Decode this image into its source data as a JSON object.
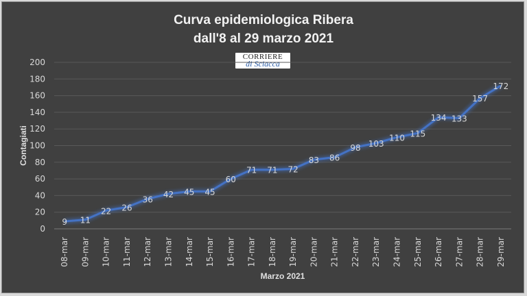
{
  "chart_data": {
    "type": "line",
    "title_line1": "Curva epidemiologica Ribera",
    "title_line2": "dall'8 al 29 marzo 2021",
    "xlabel": "Marzo 2021",
    "ylabel": "Contagiati",
    "ylim": [
      0,
      200
    ],
    "yticks": [
      0,
      20,
      40,
      60,
      80,
      100,
      120,
      140,
      160,
      180,
      200
    ],
    "grid": true,
    "legend": "none",
    "categories": [
      "08-mar",
      "09-mar",
      "10-mar",
      "11-mar",
      "12-mar",
      "13-mar",
      "14-mar",
      "15-mar",
      "16-mar",
      "17-mar",
      "18-mar",
      "19-mar",
      "20-mar",
      "21-mar",
      "22-mar",
      "23-mar",
      "24-mar",
      "25-mar",
      "26-mar",
      "27-mar",
      "28-mar",
      "29-mar"
    ],
    "values": [
      9,
      11,
      22,
      26,
      36,
      42,
      45,
      45,
      60,
      71,
      71,
      72,
      83,
      86,
      98,
      103,
      110,
      115,
      134,
      133,
      157,
      172
    ],
    "data_labels": true,
    "line_color": "#4472c4",
    "background_color": "#404040"
  },
  "logo": {
    "line1": "CORRIERE",
    "line2": "di Sciacca"
  }
}
